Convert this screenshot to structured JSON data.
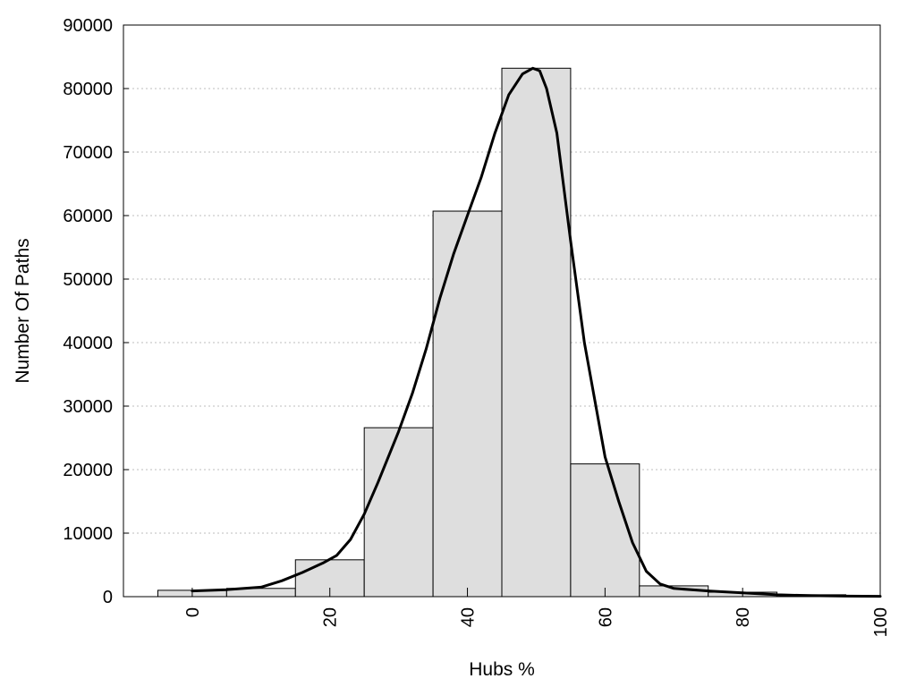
{
  "chart_data": {
    "type": "bar",
    "xlabel": "Hubs %",
    "ylabel": "Number Of Paths",
    "xlim": [
      -10,
      100
    ],
    "ylim": [
      0,
      90000
    ],
    "xticks": [
      0,
      20,
      40,
      60,
      80,
      100
    ],
    "yticks": [
      0,
      10000,
      20000,
      30000,
      40000,
      50000,
      60000,
      70000,
      80000,
      90000
    ],
    "grid": "horizontal dotted",
    "bins": [
      {
        "left": -5,
        "right": 5,
        "value": 1000
      },
      {
        "left": 5,
        "right": 15,
        "value": 1300
      },
      {
        "left": 15,
        "right": 25,
        "value": 5800
      },
      {
        "left": 25,
        "right": 35,
        "value": 26600
      },
      {
        "left": 35,
        "right": 45,
        "value": 60700
      },
      {
        "left": 45,
        "right": 55,
        "value": 83200
      },
      {
        "left": 55,
        "right": 65,
        "value": 20900
      },
      {
        "left": 65,
        "right": 75,
        "value": 1700
      },
      {
        "left": 75,
        "right": 85,
        "value": 700
      },
      {
        "left": 85,
        "right": 95,
        "value": 300
      },
      {
        "left": 95,
        "right": 105,
        "value": 100
      }
    ],
    "curve": {
      "x": [
        0,
        5,
        10,
        13,
        16,
        19,
        21,
        23,
        25,
        27,
        30,
        32,
        34,
        36,
        38,
        40,
        42,
        44,
        46,
        48,
        49.5,
        50.5,
        51.5,
        53,
        55,
        57,
        59,
        60,
        62,
        64,
        66,
        68,
        70,
        75,
        80,
        85,
        90,
        95,
        100
      ],
      "y": [
        900,
        1100,
        1500,
        2500,
        3800,
        5300,
        6500,
        9000,
        13000,
        18000,
        26000,
        32000,
        39000,
        47000,
        54000,
        60000,
        66000,
        73000,
        79000,
        82300,
        83200,
        82800,
        80000,
        73000,
        56000,
        40000,
        28000,
        22000,
        15000,
        8500,
        4000,
        2000,
        1300,
        900,
        600,
        300,
        150,
        80,
        50
      ]
    }
  }
}
